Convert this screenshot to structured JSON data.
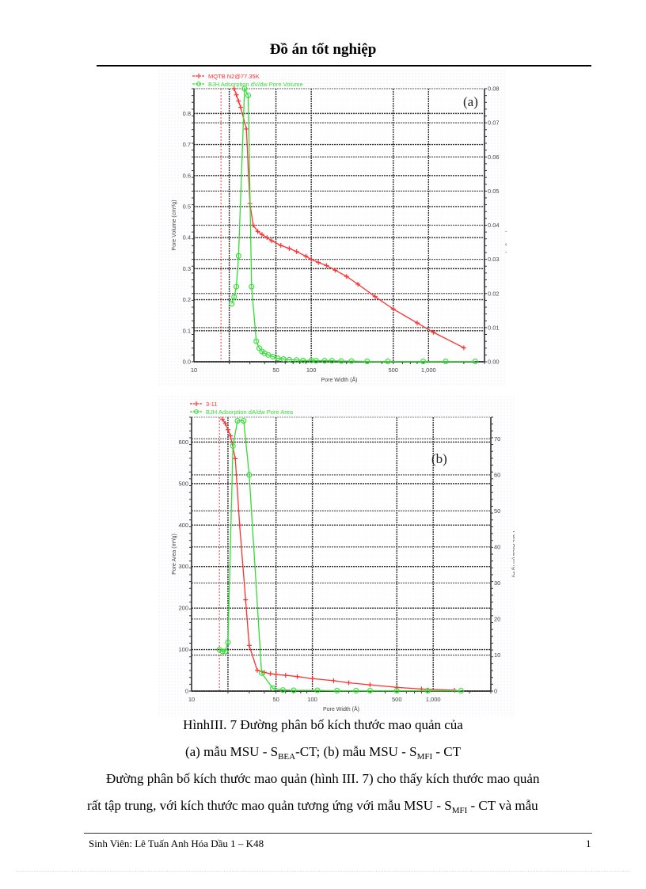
{
  "header": {
    "title": "Đồ án tốt nghiệp"
  },
  "chart_data": [
    {
      "id": "a",
      "type": "line",
      "panel_label": "(a)",
      "xlabel": "Pore Width (Å)",
      "ylabel": "Pore Volume (cm³/g)",
      "y2label": "Pore Volume (cm³/g·Å)",
      "xscale": "log",
      "xlim": [
        10,
        3000
      ],
      "ylim": [
        0,
        0.88
      ],
      "y2lim": [
        0,
        0.08
      ],
      "xticks": [
        "10",
        "50",
        "100",
        "500",
        "1,000"
      ],
      "yticks": [
        "0.0",
        "0.1",
        "0.2",
        "0.3",
        "0.4",
        "0.5",
        "0.6",
        "0.7",
        "0.8"
      ],
      "y2ticks": [
        "0.00",
        "0.01",
        "0.02",
        "0.03",
        "0.04",
        "0.05",
        "0.06",
        "0.07",
        "0.08"
      ],
      "grid": true,
      "legend_position": "top-left",
      "series": [
        {
          "name": "MQTB N2@77.35K",
          "color": "#ff3030",
          "marker": "+",
          "axis": "left",
          "x": [
            22,
            23,
            24,
            25,
            28,
            30,
            32,
            35,
            38,
            42,
            46,
            55,
            65,
            75,
            90,
            100,
            115,
            135,
            160,
            200,
            250,
            350,
            500,
            800,
            1100,
            2000
          ],
          "y": [
            0.88,
            0.86,
            0.84,
            0.82,
            0.75,
            0.51,
            0.44,
            0.42,
            0.41,
            0.4,
            0.39,
            0.375,
            0.365,
            0.355,
            0.34,
            0.33,
            0.32,
            0.31,
            0.295,
            0.275,
            0.25,
            0.21,
            0.17,
            0.125,
            0.095,
            0.045
          ]
        },
        {
          "name": "BJH Adsorption dV/dw Pore Volume",
          "color": "#33dd33",
          "marker": "o",
          "axis": "right",
          "x": [
            21,
            22,
            23,
            24,
            27,
            29,
            31,
            34,
            36,
            38,
            40,
            43,
            47,
            52,
            58,
            65,
            75,
            85,
            100,
            110,
            130,
            150,
            180,
            220,
            300,
            450,
            900,
            1400,
            2500
          ],
          "y": [
            0.017,
            0.019,
            0.022,
            0.031,
            0.08,
            0.078,
            0.022,
            0.006,
            0.004,
            0.003,
            0.0025,
            0.002,
            0.0015,
            0.001,
            0.0008,
            0.0006,
            0.0005,
            0.0004,
            0.0004,
            0.0003,
            0.0003,
            0.0003,
            0.0002,
            0.0002,
            0.0001,
            0.0001,
            0.0001,
            0.0001,
            0.0001
          ]
        }
      ]
    },
    {
      "id": "b",
      "type": "line",
      "panel_label": "(b)",
      "xlabel": "Pore Width (Å)",
      "ylabel": "Pore Area (m²/g)",
      "y2label": "Pore Area (m²/g·Å)",
      "xscale": "log",
      "xlim": [
        10,
        3000
      ],
      "ylim": [
        0,
        660
      ],
      "y2lim": [
        0,
        76
      ],
      "xticks": [
        "10",
        "50",
        "100",
        "500",
        "1,000"
      ],
      "yticks": [
        "0",
        "100",
        "200",
        "300",
        "400",
        "500",
        "600"
      ],
      "y2ticks": [
        "0",
        "10",
        "20",
        "30",
        "40",
        "50",
        "60",
        "70"
      ],
      "grid": true,
      "legend_position": "top-left",
      "series": [
        {
          "name": "3-11",
          "color": "#ff3030",
          "marker": "+",
          "axis": "left",
          "x": [
            18,
            19,
            20,
            21,
            23,
            25,
            28,
            30,
            35,
            40,
            45,
            50,
            60,
            75,
            100,
            150,
            200,
            300,
            500,
            800,
            1500
          ],
          "y": [
            655,
            645,
            630,
            615,
            560,
            400,
            220,
            110,
            50,
            45,
            42,
            40,
            38,
            35,
            30,
            25,
            20,
            15,
            9,
            5,
            2
          ]
        },
        {
          "name": "BJH Adsorption dA/dw Pore Area",
          "color": "#33dd33",
          "marker": "o",
          "axis": "right",
          "x": [
            17,
            18,
            19,
            20,
            22,
            24,
            27,
            30,
            38,
            47,
            57,
            70,
            110,
            160,
            230,
            300,
            500,
            900,
            1700
          ],
          "y": [
            11.5,
            11,
            11,
            13.5,
            68,
            75,
            75,
            60,
            5,
            0.8,
            0.3,
            0.2,
            0.2,
            0.1,
            0.1,
            0.1,
            0.1,
            0.1,
            0.1
          ]
        }
      ]
    }
  ],
  "caption": {
    "line1": "HìnhIII. 7 Đường phân bố kích thước mao quản của",
    "line2_part1": "(a) mẫu MSU - S",
    "line2_sub1": "BEA",
    "line2_part2": "-CT; (b) mẫu MSU - S",
    "line2_sub2": "MFI",
    "line2_part3": " - CT"
  },
  "body": {
    "para_line1": "Đường phân bố kích thước mao quản (hình III. 7) cho thấy kích thước mao quản",
    "para_line2_part1": "rất tập trung, với kích thước mao quản tương ứng với mẫu MSU - S",
    "para_line2_sub": "MFI",
    "para_line2_part2": " - CT và mẫu"
  },
  "footer": {
    "left": "Sinh  Viên:  Lê Tuấn  Anh    Hóa Dầu 1 – K48",
    "page_number": "1"
  }
}
